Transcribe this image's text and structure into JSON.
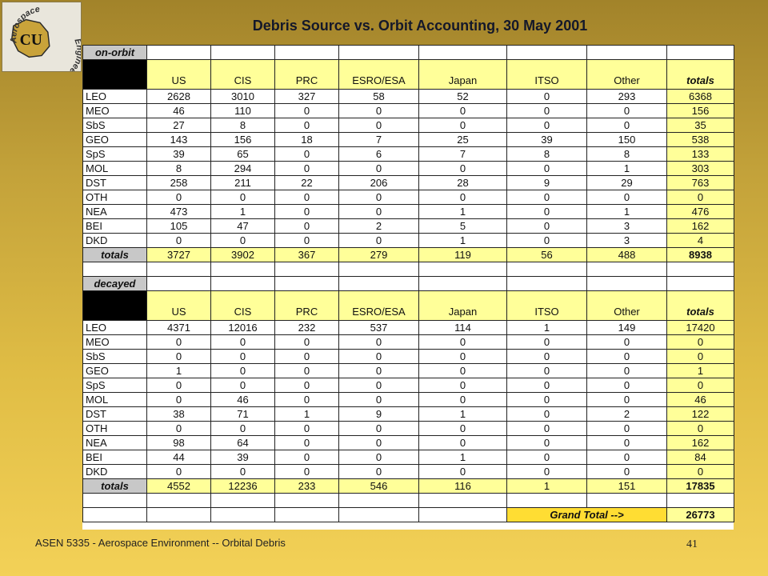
{
  "title": "Debris Source vs. Orbit Accounting, 30 May 2001",
  "logo": {
    "text_upper": "Aerospace",
    "text_lower": "Engineering",
    "monogram": "CU"
  },
  "columns": [
    "US",
    "CIS",
    "PRC",
    "ESRO/ESA",
    "Japan",
    "ITSO",
    "Other",
    "totals"
  ],
  "on_orbit": {
    "label": "on-orbit",
    "rows": [
      {
        "label": "LEO",
        "values": [
          "2628",
          "3010",
          "327",
          "58",
          "52",
          "0",
          "293",
          "6368"
        ]
      },
      {
        "label": "MEO",
        "values": [
          "46",
          "110",
          "0",
          "0",
          "0",
          "0",
          "0",
          "156"
        ]
      },
      {
        "label": "SbS",
        "values": [
          "27",
          "8",
          "0",
          "0",
          "0",
          "0",
          "0",
          "35"
        ]
      },
      {
        "label": "GEO",
        "values": [
          "143",
          "156",
          "18",
          "7",
          "25",
          "39",
          "150",
          "538"
        ]
      },
      {
        "label": "SpS",
        "values": [
          "39",
          "65",
          "0",
          "6",
          "7",
          "8",
          "8",
          "133"
        ]
      },
      {
        "label": "MOL",
        "values": [
          "8",
          "294",
          "0",
          "0",
          "0",
          "0",
          "1",
          "303"
        ]
      },
      {
        "label": "DST",
        "values": [
          "258",
          "211",
          "22",
          "206",
          "28",
          "9",
          "29",
          "763"
        ]
      },
      {
        "label": "OTH",
        "values": [
          "0",
          "0",
          "0",
          "0",
          "0",
          "0",
          "0",
          "0"
        ]
      },
      {
        "label": "NEA",
        "values": [
          "473",
          "1",
          "0",
          "0",
          "1",
          "0",
          "1",
          "476"
        ]
      },
      {
        "label": "BEI",
        "values": [
          "105",
          "47",
          "0",
          "2",
          "5",
          "0",
          "3",
          "162"
        ]
      },
      {
        "label": "DKD",
        "values": [
          "0",
          "0",
          "0",
          "0",
          "1",
          "0",
          "3",
          "4"
        ]
      }
    ],
    "totals_label": "totals",
    "totals": [
      "3727",
      "3902",
      "367",
      "279",
      "119",
      "56",
      "488",
      "8938"
    ]
  },
  "decayed": {
    "label": "decayed",
    "rows": [
      {
        "label": "LEO",
        "values": [
          "4371",
          "12016",
          "232",
          "537",
          "114",
          "1",
          "149",
          "17420"
        ]
      },
      {
        "label": "MEO",
        "values": [
          "0",
          "0",
          "0",
          "0",
          "0",
          "0",
          "0",
          "0"
        ]
      },
      {
        "label": "SbS",
        "values": [
          "0",
          "0",
          "0",
          "0",
          "0",
          "0",
          "0",
          "0"
        ]
      },
      {
        "label": "GEO",
        "values": [
          "1",
          "0",
          "0",
          "0",
          "0",
          "0",
          "0",
          "1"
        ]
      },
      {
        "label": "SpS",
        "values": [
          "0",
          "0",
          "0",
          "0",
          "0",
          "0",
          "0",
          "0"
        ]
      },
      {
        "label": "MOL",
        "values": [
          "0",
          "46",
          "0",
          "0",
          "0",
          "0",
          "0",
          "46"
        ]
      },
      {
        "label": "DST",
        "values": [
          "38",
          "71",
          "1",
          "9",
          "1",
          "0",
          "2",
          "122"
        ]
      },
      {
        "label": "OTH",
        "values": [
          "0",
          "0",
          "0",
          "0",
          "0",
          "0",
          "0",
          "0"
        ]
      },
      {
        "label": "NEA",
        "values": [
          "98",
          "64",
          "0",
          "0",
          "0",
          "0",
          "0",
          "162"
        ]
      },
      {
        "label": "BEI",
        "values": [
          "44",
          "39",
          "0",
          "0",
          "1",
          "0",
          "0",
          "84"
        ]
      },
      {
        "label": "DKD",
        "values": [
          "0",
          "0",
          "0",
          "0",
          "0",
          "0",
          "0",
          "0"
        ]
      }
    ],
    "totals_label": "totals",
    "totals": [
      "4552",
      "12236",
      "233",
      "546",
      "116",
      "1",
      "151",
      "17835"
    ]
  },
  "grand_total": {
    "label": "Grand Total -->",
    "value": "26773"
  },
  "footer": {
    "course": "ASEN 5335 - Aerospace Environment -- Orbital Debris",
    "page_number": "41"
  },
  "colors": {
    "header_fill": "#ffff99",
    "label_fill": "#c8c8c8",
    "grand_label_fill": "#ffdd33",
    "background_top": "#a2832a",
    "background_bottom": "#f3d157"
  }
}
